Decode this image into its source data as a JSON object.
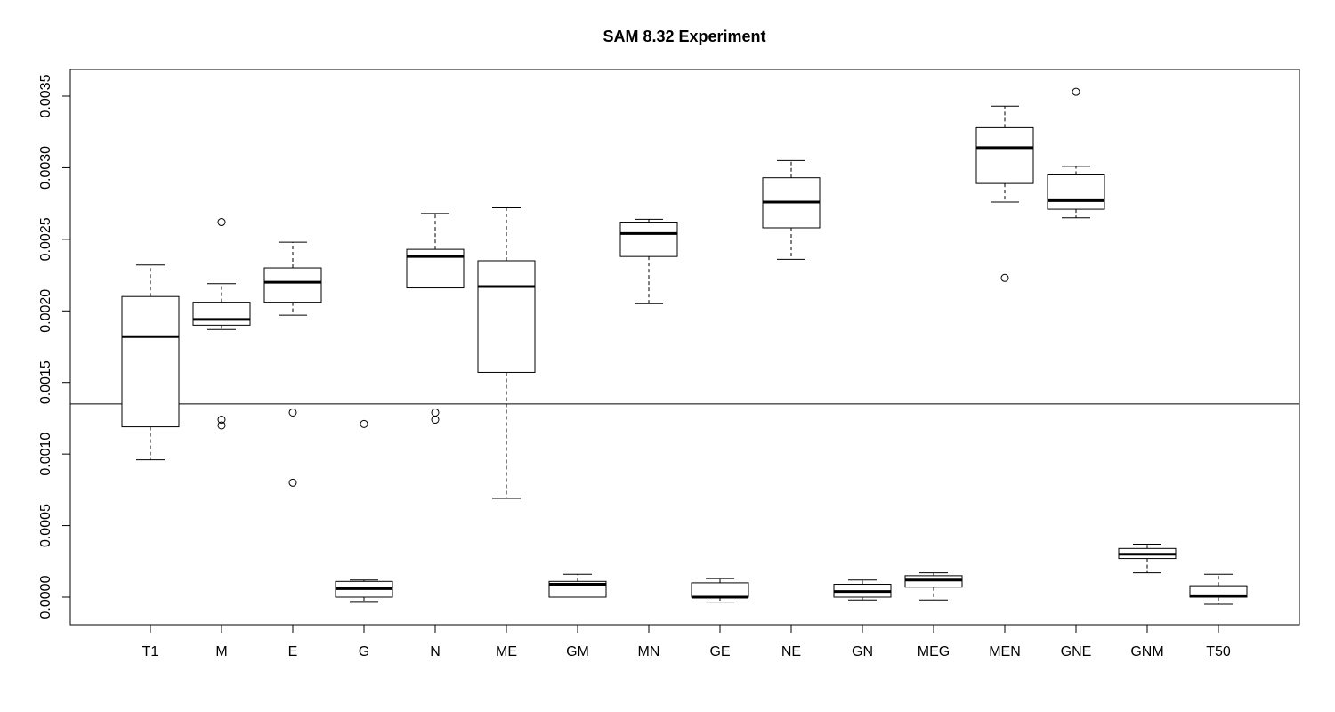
{
  "chart_data": {
    "type": "boxplot",
    "title": "SAM 8.32 Experiment",
    "xlabel": "",
    "ylabel": "",
    "ylim": [
      -0.0002,
      0.0037
    ],
    "yticks": [
      0.0,
      0.0005,
      0.001,
      0.0015,
      0.002,
      0.0025,
      0.003,
      0.0035
    ],
    "ytick_labels": [
      "0.0000",
      "0.0005",
      "0.0010",
      "0.0015",
      "0.0020",
      "0.0025",
      "0.0030",
      "0.0035"
    ],
    "reference_line": 0.00135,
    "grid": false,
    "categories": [
      "T1",
      "M",
      "E",
      "G",
      "N",
      "ME",
      "GM",
      "MN",
      "GE",
      "NE",
      "GN",
      "MEG",
      "MEN",
      "GNE",
      "GNM",
      "T50"
    ],
    "boxes": [
      {
        "label": "T1",
        "whislo": 0.00096,
        "q1": 0.00119,
        "med": 0.00182,
        "q3": 0.0021,
        "whishi": 0.00232,
        "fliers": []
      },
      {
        "label": "M",
        "whislo": 0.00187,
        "q1": 0.0019,
        "med": 0.00194,
        "q3": 0.00206,
        "whishi": 0.00219,
        "fliers": [
          0.00262,
          0.00124,
          0.0012
        ]
      },
      {
        "label": "E",
        "whislo": 0.00197,
        "q1": 0.00206,
        "med": 0.0022,
        "q3": 0.0023,
        "whishi": 0.00248,
        "fliers": [
          0.00129,
          0.0008
        ]
      },
      {
        "label": "G",
        "whislo": -3e-05,
        "q1": 0.0,
        "med": 6e-05,
        "q3": 0.00011,
        "whishi": 0.00012,
        "fliers": [
          0.00121
        ]
      },
      {
        "label": "N",
        "whislo": 0.00216,
        "q1": 0.00216,
        "med": 0.00238,
        "q3": 0.00243,
        "whishi": 0.00268,
        "fliers": [
          0.00129,
          0.00124
        ]
      },
      {
        "label": "ME",
        "whislo": 0.00069,
        "q1": 0.00157,
        "med": 0.00217,
        "q3": 0.00235,
        "whishi": 0.00272,
        "fliers": []
      },
      {
        "label": "GM",
        "whislo": 0.0,
        "q1": 0.0,
        "med": 9e-05,
        "q3": 0.00011,
        "whishi": 0.00016,
        "fliers": []
      },
      {
        "label": "MN",
        "whislo": 0.00205,
        "q1": 0.00238,
        "med": 0.00254,
        "q3": 0.00262,
        "whishi": 0.00264,
        "fliers": []
      },
      {
        "label": "GE",
        "whislo": -4e-05,
        "q1": 0.0,
        "med": 0.0,
        "q3": 0.0001,
        "whishi": 0.00013,
        "fliers": []
      },
      {
        "label": "NE",
        "whislo": 0.00236,
        "q1": 0.00258,
        "med": 0.00276,
        "q3": 0.00293,
        "whishi": 0.00305,
        "fliers": []
      },
      {
        "label": "GN",
        "whislo": -2e-05,
        "q1": 0.0,
        "med": 4e-05,
        "q3": 9e-05,
        "whishi": 0.00012,
        "fliers": []
      },
      {
        "label": "MEG",
        "whislo": -2e-05,
        "q1": 7e-05,
        "med": 0.00012,
        "q3": 0.00015,
        "whishi": 0.00017,
        "fliers": []
      },
      {
        "label": "MEN",
        "whislo": 0.00276,
        "q1": 0.00289,
        "med": 0.00314,
        "q3": 0.00328,
        "whishi": 0.00343,
        "fliers": [
          0.00223
        ]
      },
      {
        "label": "GNE",
        "whislo": 0.00265,
        "q1": 0.00271,
        "med": 0.00277,
        "q3": 0.00295,
        "whishi": 0.00301,
        "fliers": [
          0.00353
        ]
      },
      {
        "label": "GNM",
        "whislo": 0.00017,
        "q1": 0.00027,
        "med": 0.0003,
        "q3": 0.00034,
        "whishi": 0.00037,
        "fliers": []
      },
      {
        "label": "T50",
        "whislo": -5e-05,
        "q1": 0.0,
        "med": 1e-05,
        "q3": 8e-05,
        "whishi": 0.00016,
        "fliers": []
      }
    ]
  }
}
